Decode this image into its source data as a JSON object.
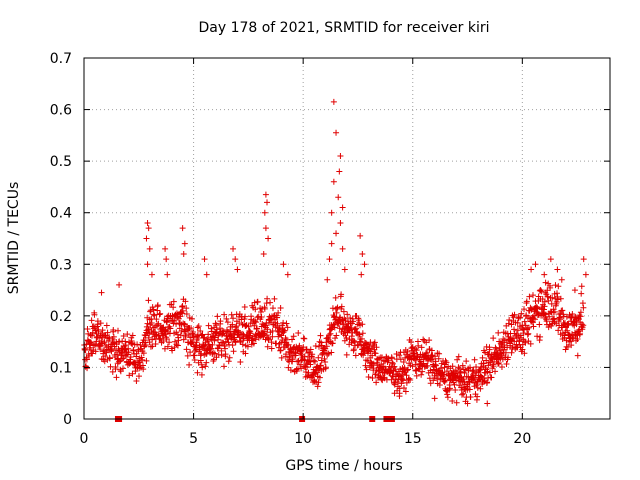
{
  "chart_data": {
    "type": "scatter",
    "title": "Day 178 of 2021, SRMTID for receiver kiri",
    "xlabel": "GPS time / hours",
    "ylabel": "SRMTID / TECUs",
    "xlim": [
      0,
      24
    ],
    "ylim": [
      0,
      0.7
    ],
    "xticks": [
      "0",
      "5",
      "10",
      "15",
      "20"
    ],
    "yticks": [
      "0",
      "0.1",
      "0.2",
      "0.3",
      "0.4",
      "0.5",
      "0.6",
      "0.7"
    ],
    "grid": true,
    "marker": "+",
    "color": "#e00000",
    "trend": [
      [
        0.0,
        0.13
      ],
      [
        0.5,
        0.16
      ],
      [
        1.0,
        0.14
      ],
      [
        1.5,
        0.13
      ],
      [
        2.0,
        0.13
      ],
      [
        2.5,
        0.11
      ],
      [
        3.0,
        0.18
      ],
      [
        3.5,
        0.17
      ],
      [
        4.0,
        0.18
      ],
      [
        4.5,
        0.19
      ],
      [
        5.0,
        0.14
      ],
      [
        5.5,
        0.14
      ],
      [
        6.0,
        0.15
      ],
      [
        6.5,
        0.16
      ],
      [
        7.0,
        0.17
      ],
      [
        7.5,
        0.17
      ],
      [
        8.0,
        0.18
      ],
      [
        8.5,
        0.19
      ],
      [
        9.0,
        0.16
      ],
      [
        9.5,
        0.13
      ],
      [
        10.0,
        0.12
      ],
      [
        10.5,
        0.1
      ],
      [
        11.0,
        0.13
      ],
      [
        11.5,
        0.2
      ],
      [
        12.0,
        0.18
      ],
      [
        12.5,
        0.16
      ],
      [
        13.0,
        0.12
      ],
      [
        13.5,
        0.1
      ],
      [
        14.0,
        0.09
      ],
      [
        14.5,
        0.09
      ],
      [
        15.0,
        0.12
      ],
      [
        15.5,
        0.12
      ],
      [
        16.0,
        0.1
      ],
      [
        16.5,
        0.08
      ],
      [
        17.0,
        0.08
      ],
      [
        17.5,
        0.07
      ],
      [
        18.0,
        0.08
      ],
      [
        18.5,
        0.11
      ],
      [
        19.0,
        0.13
      ],
      [
        19.5,
        0.17
      ],
      [
        20.0,
        0.16
      ],
      [
        20.5,
        0.2
      ],
      [
        21.0,
        0.23
      ],
      [
        21.5,
        0.22
      ],
      [
        22.0,
        0.17
      ],
      [
        22.5,
        0.18
      ],
      [
        22.8,
        0.2
      ]
    ],
    "spread": 0.035,
    "peaks": [
      {
        "x": 11.4,
        "y": 0.615
      },
      {
        "x": 11.5,
        "y": 0.555
      },
      {
        "x": 11.7,
        "y": 0.51
      },
      {
        "x": 11.65,
        "y": 0.48
      },
      {
        "x": 11.4,
        "y": 0.46
      },
      {
        "x": 11.6,
        "y": 0.43
      },
      {
        "x": 11.8,
        "y": 0.41
      },
      {
        "x": 11.3,
        "y": 0.4
      },
      {
        "x": 11.7,
        "y": 0.38
      },
      {
        "x": 11.5,
        "y": 0.36
      },
      {
        "x": 11.3,
        "y": 0.34
      },
      {
        "x": 11.8,
        "y": 0.33
      },
      {
        "x": 11.2,
        "y": 0.31
      },
      {
        "x": 11.9,
        "y": 0.29
      },
      {
        "x": 11.1,
        "y": 0.27
      },
      {
        "x": 8.3,
        "y": 0.435
      },
      {
        "x": 8.35,
        "y": 0.42
      },
      {
        "x": 8.25,
        "y": 0.4
      },
      {
        "x": 8.3,
        "y": 0.37
      },
      {
        "x": 8.4,
        "y": 0.35
      },
      {
        "x": 8.2,
        "y": 0.32
      },
      {
        "x": 2.9,
        "y": 0.38
      },
      {
        "x": 2.95,
        "y": 0.37
      },
      {
        "x": 2.85,
        "y": 0.35
      },
      {
        "x": 3.0,
        "y": 0.33
      },
      {
        "x": 2.9,
        "y": 0.3
      },
      {
        "x": 3.1,
        "y": 0.28
      },
      {
        "x": 4.5,
        "y": 0.37
      },
      {
        "x": 4.6,
        "y": 0.34
      },
      {
        "x": 4.55,
        "y": 0.32
      },
      {
        "x": 3.7,
        "y": 0.33
      },
      {
        "x": 3.75,
        "y": 0.31
      },
      {
        "x": 3.8,
        "y": 0.28
      },
      {
        "x": 6.8,
        "y": 0.33
      },
      {
        "x": 6.9,
        "y": 0.31
      },
      {
        "x": 7.0,
        "y": 0.29
      },
      {
        "x": 5.5,
        "y": 0.31
      },
      {
        "x": 5.6,
        "y": 0.28
      },
      {
        "x": 9.1,
        "y": 0.3
      },
      {
        "x": 9.3,
        "y": 0.28
      },
      {
        "x": 12.6,
        "y": 0.355
      },
      {
        "x": 12.7,
        "y": 0.32
      },
      {
        "x": 12.8,
        "y": 0.3
      },
      {
        "x": 12.65,
        "y": 0.28
      },
      {
        "x": 20.4,
        "y": 0.29
      },
      {
        "x": 20.6,
        "y": 0.3
      },
      {
        "x": 21.0,
        "y": 0.28
      },
      {
        "x": 21.3,
        "y": 0.31
      },
      {
        "x": 21.6,
        "y": 0.29
      },
      {
        "x": 21.8,
        "y": 0.27
      },
      {
        "x": 22.8,
        "y": 0.31
      },
      {
        "x": 22.9,
        "y": 0.28
      },
      {
        "x": 22.4,
        "y": 0.25
      },
      {
        "x": 1.6,
        "y": 0.26
      },
      {
        "x": 0.8,
        "y": 0.245
      },
      {
        "x": 14.4,
        "y": 0.05
      },
      {
        "x": 16.0,
        "y": 0.04
      },
      {
        "x": 17.5,
        "y": 0.03
      },
      {
        "x": 18.4,
        "y": 0.03
      },
      {
        "x": 14.6,
        "y": 0.06
      },
      {
        "x": 16.8,
        "y": 0.035
      }
    ],
    "zero_markers": [
      1.55,
      1.6,
      9.95,
      13.15,
      13.8,
      14.05
    ]
  }
}
